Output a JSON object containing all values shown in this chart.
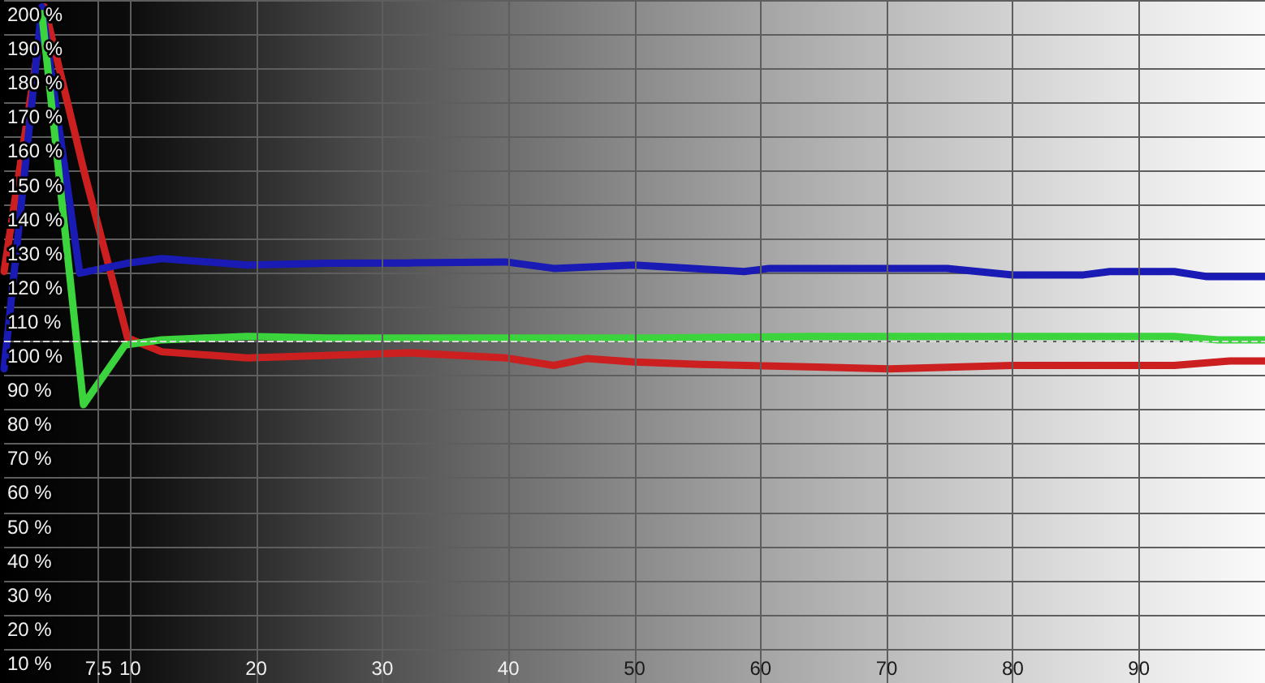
{
  "chart_data": {
    "type": "line",
    "series": [
      {
        "color": "#cc2020",
        "x": [
          0,
          3.2,
          6.4,
          9.8,
          12.5,
          19.3,
          32.1,
          39.8,
          43.6,
          46.2,
          50,
          55.2,
          70.2,
          80,
          92.8,
          97.2,
          100
        ],
        "values": [
          120.5,
          198,
          149,
          101,
          97,
          95.2,
          96.7,
          95.2,
          93,
          95,
          94,
          93.3,
          92,
          93,
          93,
          94.3,
          94.3
        ]
      },
      {
        "color": "#1a1ab4",
        "x": [
          0,
          3,
          6,
          9.9,
          12.5,
          19.3,
          25.7,
          32.1,
          39.8,
          43.6,
          50,
          58.7,
          60.7,
          74.8,
          80,
          85.6,
          87.7,
          92.8,
          95.4,
          100
        ],
        "values": [
          92,
          198,
          120,
          123,
          124.3,
          122.4,
          122.9,
          123,
          123.3,
          121.4,
          122.4,
          120.5,
          121.4,
          121.4,
          119.5,
          119.5,
          120.5,
          120.5,
          119,
          119
        ]
      },
      {
        "color": "#3cd43c",
        "x": [
          3,
          6.3,
          9.6,
          12.5,
          19.3,
          25.7,
          38.5,
          51.3,
          64.2,
          77,
          89.9,
          92.8,
          96.3,
          100
        ],
        "values": [
          196,
          81.5,
          99,
          100.5,
          101.5,
          101,
          101,
          101,
          101.5,
          101.5,
          101.5,
          101.5,
          100.5,
          100.5
        ]
      }
    ],
    "xlim": [
      0,
      100
    ],
    "xticks": [
      7.5,
      10,
      20,
      30,
      40,
      50,
      60,
      70,
      80,
      90
    ],
    "ylim": [
      0,
      200
    ],
    "yticks": [
      {
        "value": 10,
        "label": "10 %"
      },
      {
        "value": 20,
        "label": "20 %"
      },
      {
        "value": 30,
        "label": "30 %"
      },
      {
        "value": 40,
        "label": "40 %"
      },
      {
        "value": 50,
        "label": "50 %"
      },
      {
        "value": 60,
        "label": "60 %"
      },
      {
        "value": 70,
        "label": "70 %"
      },
      {
        "value": 80,
        "label": "80 %"
      },
      {
        "value": 90,
        "label": "90 %"
      },
      {
        "value": 100,
        "label": "100 %"
      },
      {
        "value": 110,
        "label": "110 %"
      },
      {
        "value": 120,
        "label": "120 %"
      },
      {
        "value": 130,
        "label": "130 %"
      },
      {
        "value": 140,
        "label": "140 %"
      },
      {
        "value": 150,
        "label": "150 %"
      },
      {
        "value": 160,
        "label": "160 %"
      },
      {
        "value": 170,
        "label": "170 %"
      },
      {
        "value": 180,
        "label": "180 %"
      },
      {
        "value": 190,
        "label": "190 %"
      },
      {
        "value": 200,
        "label": "200 %"
      }
    ],
    "ref_lines": [
      {
        "axis": "y",
        "value": 100,
        "label": null,
        "line_style": "dashed"
      }
    ],
    "grid": true,
    "marker": "none",
    "line_style": "solid"
  }
}
